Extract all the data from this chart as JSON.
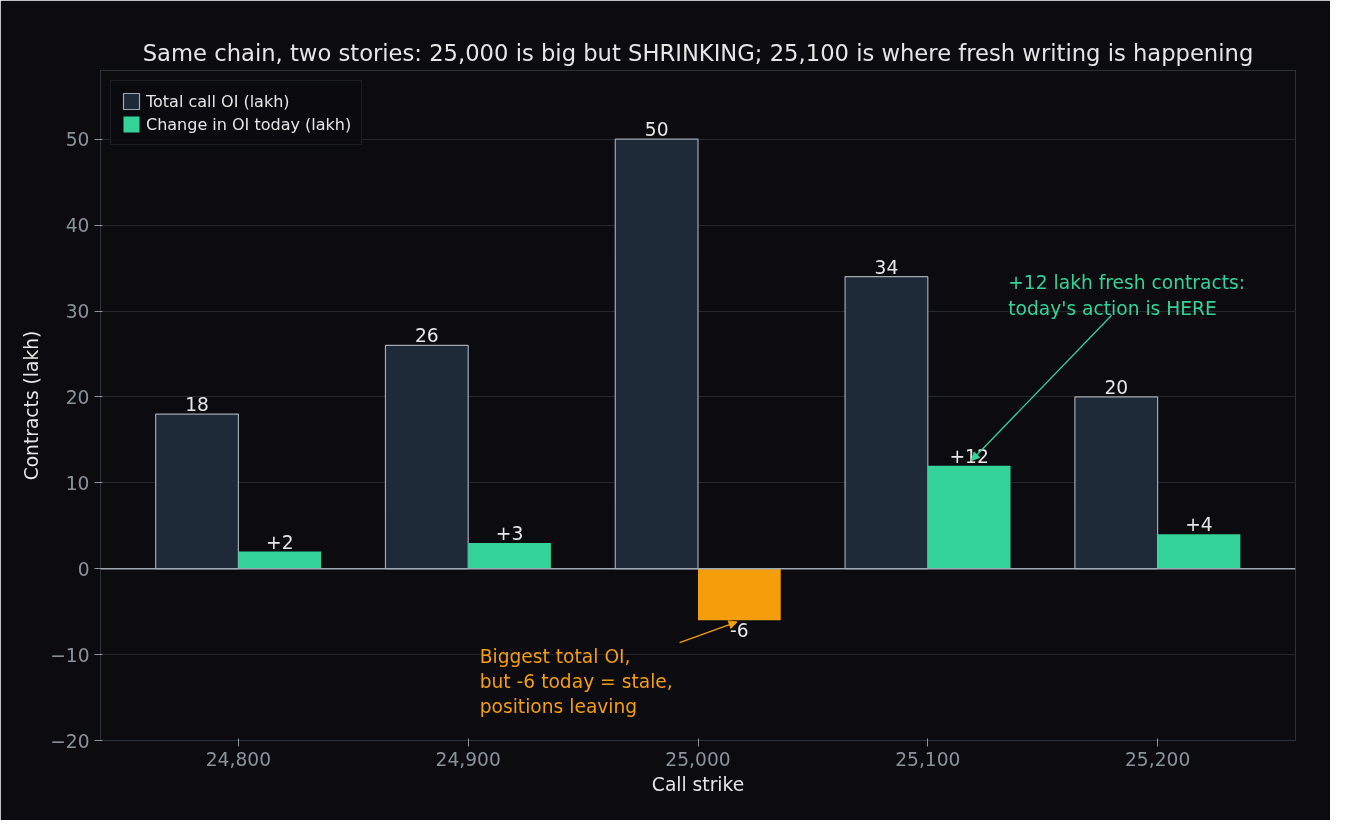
{
  "chart_data": {
    "type": "bar",
    "title": "Same chain, two stories: 25,000 is big but SHRINKING; 25,100 is where fresh writing is happening",
    "xlabel": "Call strike",
    "ylabel": "Contracts (lakh)",
    "categories": [
      "24,800",
      "24,900",
      "25,000",
      "25,100",
      "25,200"
    ],
    "series": [
      {
        "name": "Total call OI (lakh)",
        "color": "#1e2a38",
        "values": [
          18,
          26,
          50,
          34,
          20
        ],
        "value_labels": [
          "18",
          "26",
          "50",
          "34",
          "20"
        ]
      },
      {
        "name": "Change in OI today (lakh)",
        "color": "#34d399",
        "colors": [
          "#34d399",
          "#34d399",
          "#f59e0b",
          "#34d399",
          "#34d399"
        ],
        "values": [
          2,
          3,
          -6,
          12,
          4
        ],
        "value_labels": [
          "+2",
          "+3",
          "-6",
          "+12",
          "+4"
        ]
      }
    ],
    "ylim": [
      -20,
      58
    ],
    "yticks": [
      -20,
      -10,
      0,
      10,
      20,
      30,
      40,
      50
    ],
    "grid": "y",
    "legend": "top left",
    "annotations": [
      {
        "text": "Biggest total OI,\nbut -6 today = stale,\npositions leaving",
        "x": "25,000",
        "y": -6
      },
      "+12 lakh fresh contracts:\ntoday's action is HERE"
    ]
  }
}
